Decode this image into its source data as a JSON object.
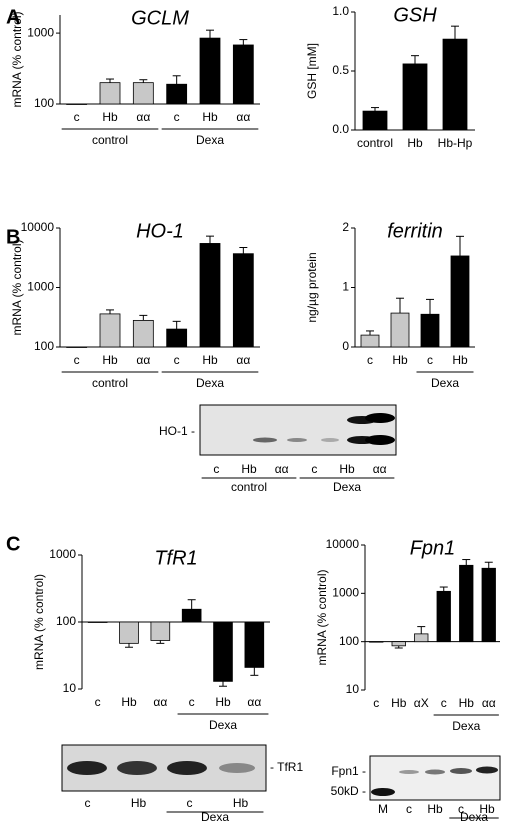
{
  "panel_labels": [
    "A",
    "B",
    "C"
  ],
  "chart_data": [
    {
      "type": "bar",
      "title": "GCLM",
      "ylabel": "mRNA (% control)",
      "log_scale": true,
      "categories": [
        "c",
        "Hb",
        "αα",
        "c",
        "Hb",
        "αα"
      ],
      "values": [
        100,
        200,
        200,
        190,
        850,
        680
      ],
      "errors": [
        null,
        25,
        20,
        60,
        250,
        130
      ],
      "colors": [
        "#000000",
        "#c8c8c8",
        "#c8c8c8",
        "#000000",
        "#000000",
        "#000000"
      ],
      "ylim": [
        100,
        1800
      ],
      "yticks": [
        100,
        1000
      ],
      "groups": [
        {
          "label": "control",
          "from": 0,
          "to": 2
        },
        {
          "label": "Dexa",
          "from": 3,
          "to": 5
        }
      ]
    },
    {
      "type": "bar",
      "title": "GSH",
      "ylabel": "GSH [mM]",
      "categories": [
        "control",
        "Hb",
        "Hb-Hp"
      ],
      "values": [
        0.16,
        0.56,
        0.77
      ],
      "errors": [
        0.03,
        0.07,
        0.11
      ],
      "colors": [
        "#000000",
        "#000000",
        "#000000"
      ],
      "ylim": [
        0,
        1.0
      ],
      "yticks": [
        {
          "value": 0,
          "label": "0.0"
        },
        {
          "value": 0.5,
          "label": "0.5"
        },
        {
          "value": 1,
          "label": "1.0"
        }
      ]
    },
    {
      "type": "bar",
      "title": "HO-1",
      "ylabel": "mRNA (% control)",
      "log_scale": true,
      "categories": [
        "c",
        "Hb",
        "αα",
        "c",
        "Hb",
        "αα"
      ],
      "values": [
        100,
        360,
        280,
        200,
        5500,
        3700
      ],
      "errors": [
        null,
        60,
        60,
        70,
        1800,
        1000
      ],
      "colors": [
        "#000000",
        "#c8c8c8",
        "#c8c8c8",
        "#000000",
        "#000000",
        "#000000"
      ],
      "ylim": [
        100,
        10000
      ],
      "yticks": [
        100,
        1000,
        10000
      ],
      "groups": [
        {
          "label": "control",
          "from": 0,
          "to": 2
        },
        {
          "label": "Dexa",
          "from": 3,
          "to": 5
        }
      ]
    },
    {
      "type": "bar",
      "title": "ferritin",
      "ylabel": "ng/µg protein",
      "categories": [
        "c",
        "Hb",
        "c",
        "Hb"
      ],
      "values": [
        0.2,
        0.57,
        0.55,
        1.53
      ],
      "errors": [
        0.07,
        0.25,
        0.25,
        0.33
      ],
      "colors": [
        "#c8c8c8",
        "#c8c8c8",
        "#000000",
        "#000000"
      ],
      "ylim": [
        0,
        2
      ],
      "yticks": [
        0,
        1,
        2
      ],
      "groups": [
        {
          "label": "Dexa",
          "from": 2,
          "to": 3
        }
      ]
    },
    {
      "type": "bar",
      "title": "TfR1",
      "ylabel": "mRNA (% control)",
      "log_scale": true,
      "baseline": 100,
      "categories": [
        "c",
        "Hb",
        "αα",
        "c",
        "Hb",
        "αα"
      ],
      "values": [
        100,
        48,
        53,
        155,
        13,
        21
      ],
      "errors": [
        null,
        6,
        5,
        60,
        2,
        5
      ],
      "colors": [
        "#000000",
        "#c8c8c8",
        "#c8c8c8",
        "#000000",
        "#000000",
        "#000000"
      ],
      "ylim": [
        10,
        1000
      ],
      "yticks": [
        10,
        100,
        1000
      ],
      "groups": [
        {
          "label": "Dexa",
          "from": 3,
          "to": 5
        }
      ]
    },
    {
      "type": "bar",
      "title": "Fpn1",
      "ylabel": "mRNA (% control)",
      "log_scale": true,
      "baseline": 100,
      "categories": [
        "c",
        "Hb",
        "αX",
        "c",
        "Hb",
        "αα"
      ],
      "values": [
        100,
        82,
        145,
        1100,
        3800,
        3300
      ],
      "errors": [
        null,
        8,
        60,
        250,
        1200,
        1100
      ],
      "colors": [
        "#000000",
        "#c8c8c8",
        "#c8c8c8",
        "#000000",
        "#000000",
        "#000000"
      ],
      "ylim": [
        10,
        10000
      ],
      "yticks": [
        10,
        100,
        1000,
        10000
      ],
      "groups": [
        {
          "label": "Dexa",
          "from": 3,
          "to": 5
        }
      ]
    }
  ],
  "blots": [
    {
      "labels": [
        "HO-1 -"
      ],
      "lanes": [
        "c",
        "Hb",
        "αα",
        "c",
        "Hb",
        "αα"
      ],
      "groups": [
        {
          "label": "control",
          "from": 0,
          "to": 2
        },
        {
          "label": "Dexa",
          "from": 3,
          "to": 5
        }
      ]
    },
    {
      "labels": [
        "- TfR1"
      ],
      "lanes": [
        "c",
        "Hb",
        "c",
        "Hb"
      ],
      "groups": [
        {
          "label": "Dexa",
          "from": 2,
          "to": 3
        }
      ]
    },
    {
      "labels": [
        "Fpn1 -",
        "50kD -"
      ],
      "lanes": [
        "M",
        "c",
        "Hb",
        "c",
        "Hb"
      ],
      "groups": [
        {
          "label": "Dexa",
          "from": 3,
          "to": 4
        }
      ]
    }
  ]
}
